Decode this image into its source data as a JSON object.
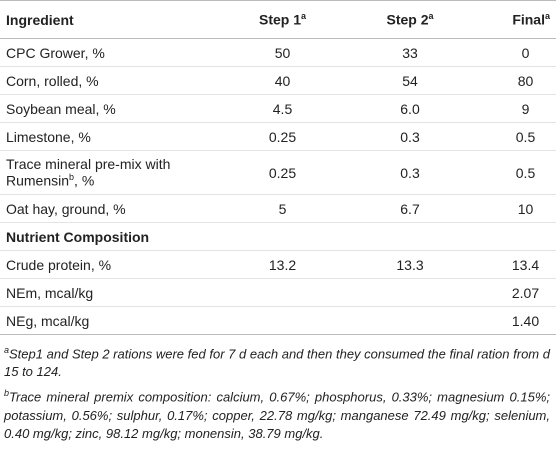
{
  "table": {
    "header": [
      {
        "text": "Ingredient"
      },
      {
        "text": "Step 1",
        "sup": "a"
      },
      {
        "text": "Step 2",
        "sup": "a"
      },
      {
        "text": "Final",
        "sup": "a"
      }
    ],
    "rows": [
      {
        "label": "CPC Grower, %",
        "cells": [
          "50",
          "33",
          "0"
        ]
      },
      {
        "label": "Corn, rolled, %",
        "cells": [
          "40",
          "54",
          "80"
        ]
      },
      {
        "label": "Soybean meal, %",
        "cells": [
          "4.5",
          "6.0",
          "9"
        ]
      },
      {
        "label": "Limestone, %",
        "cells": [
          "0.25",
          "0.3",
          "0.5"
        ]
      },
      {
        "label": "Trace mineral pre-mix with Rumensin",
        "label_sup": "b",
        "label_suffix": ", %",
        "cells": [
          "0.25",
          "0.3",
          "0.5"
        ]
      },
      {
        "label": "Oat hay, ground, %",
        "cells": [
          "5",
          "6.7",
          "10"
        ]
      },
      {
        "section": "Nutrient Composition"
      },
      {
        "label": "Crude protein, %",
        "cells": [
          "13.2",
          "13.3",
          "13.4"
        ]
      },
      {
        "label": "NEm, mcal/kg",
        "cells": [
          null,
          null,
          "2.07"
        ]
      },
      {
        "label": "NEg, mcal/kg",
        "cells": [
          null,
          null,
          "1.40"
        ]
      }
    ]
  },
  "footnotes": [
    {
      "mark": "a",
      "text": "Step1 and Step 2 rations were fed for 7 d each and then they consumed the final ration from d 15 to 124."
    },
    {
      "mark": "b",
      "text": "Trace mineral premix composition: calcium, 0.67%; phosphorus, 0.33%; magnesium 0.15%; potassium, 0.56%; sulphur, 0.17%; copper, 22.78 mg/kg; manganese 72.49 mg/kg; selenium, 0.40 mg/kg; zinc, 98.12 mg/kg; monensin, 38.79 mg/kg."
    }
  ]
}
